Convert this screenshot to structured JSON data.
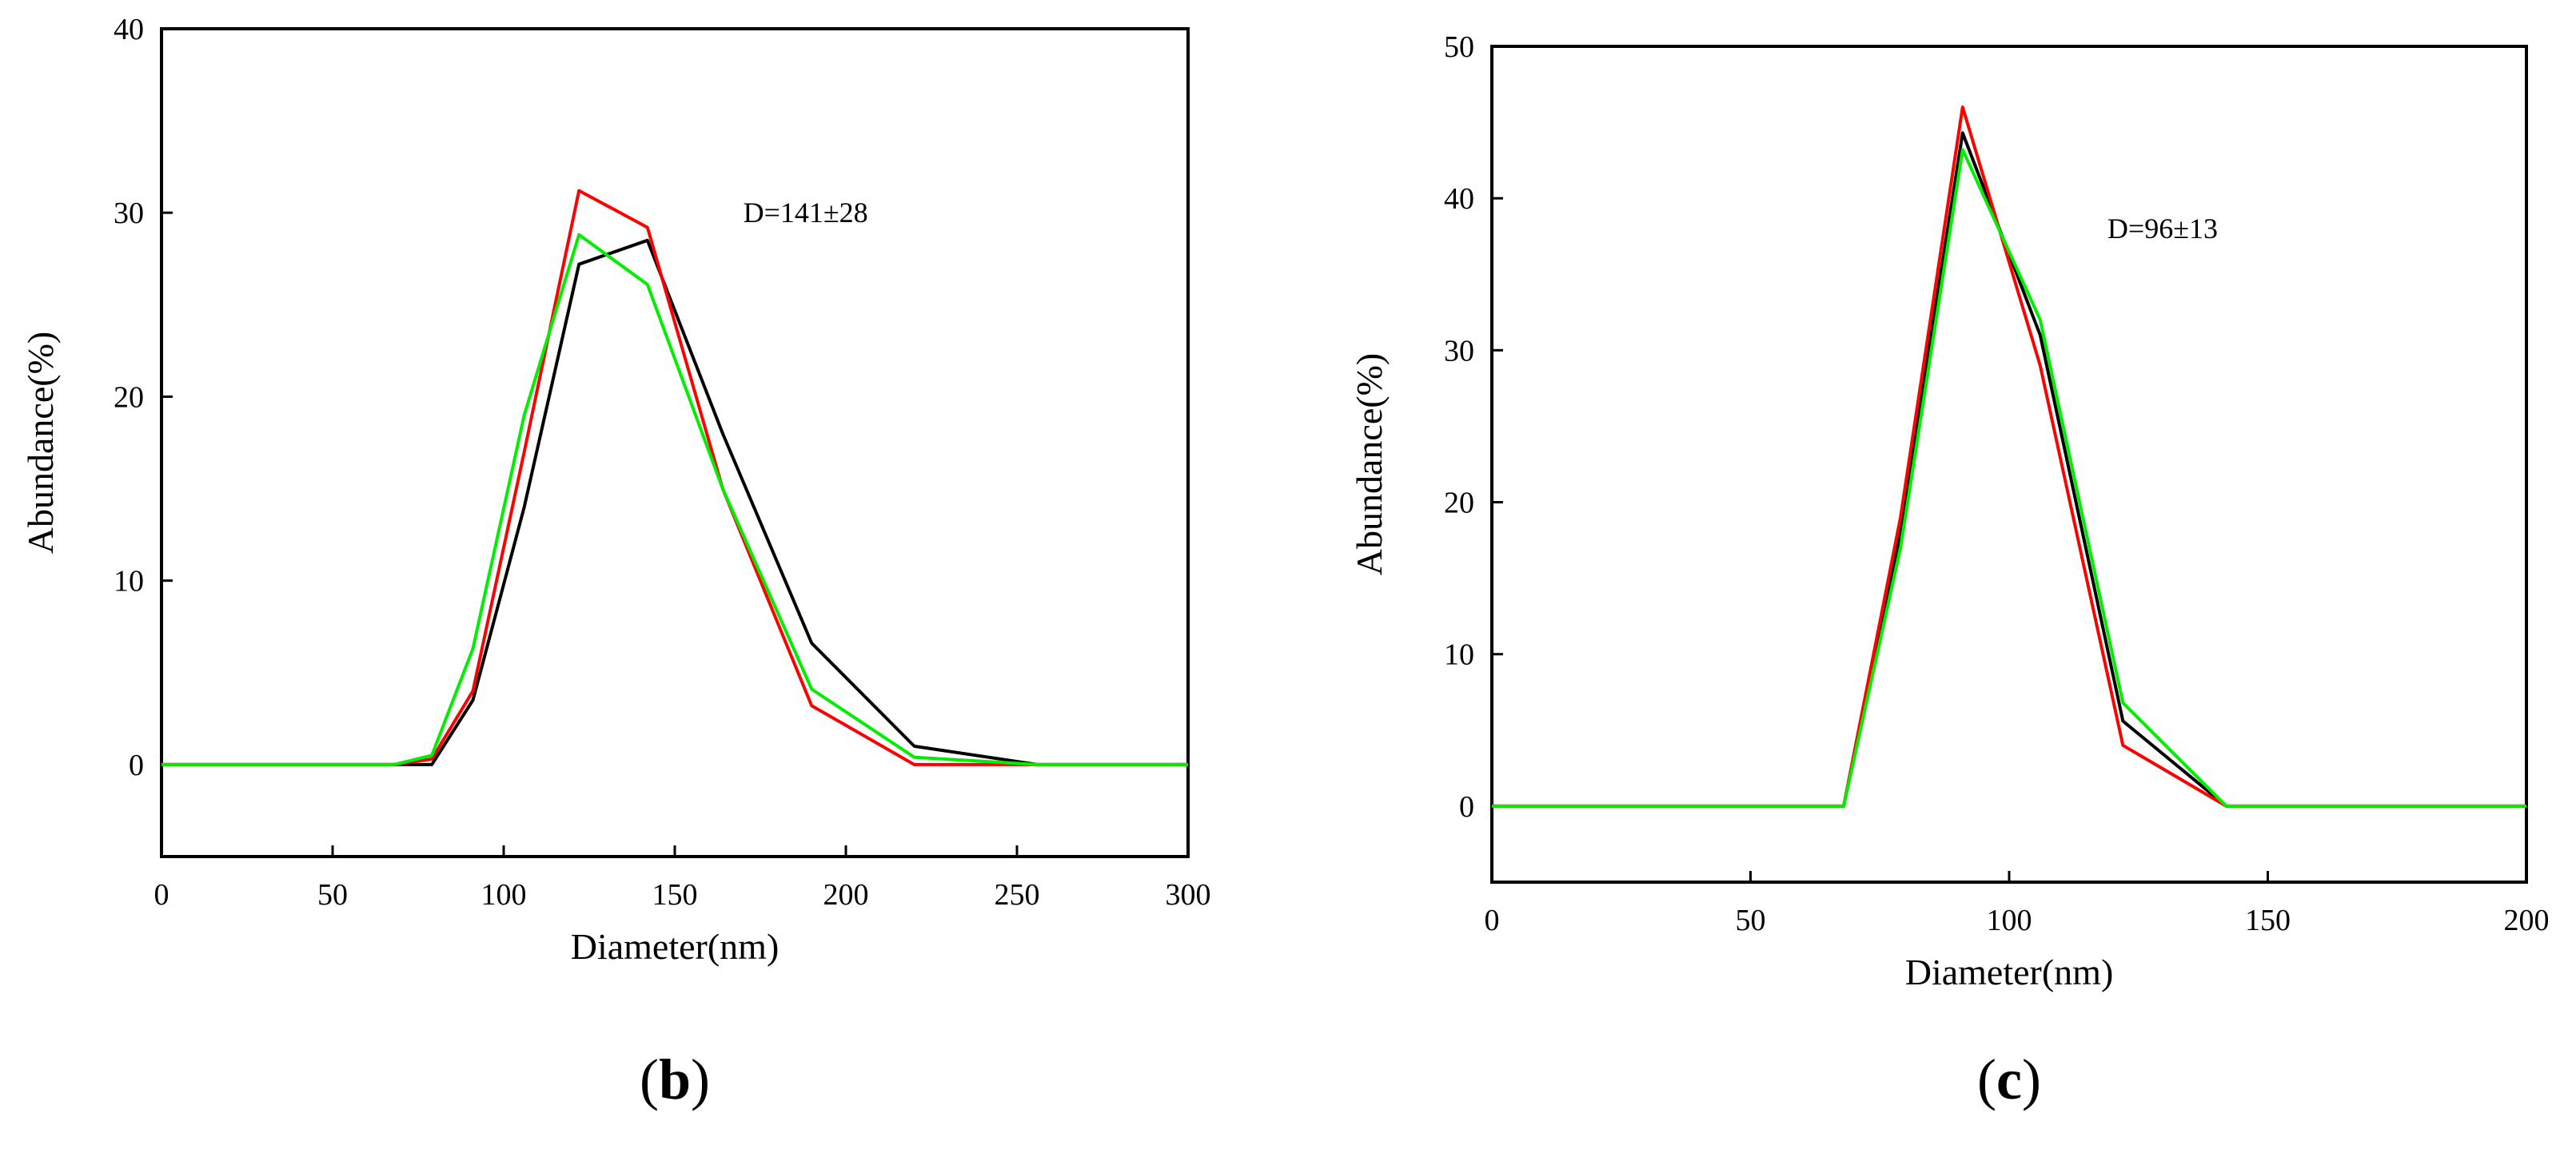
{
  "chart_data": [
    {
      "type": "line",
      "panel_label": {
        "open": "(",
        "letter": "b",
        "close": ")"
      },
      "xlabel": "Diameter(nm)",
      "ylabel": "Abundance(%)",
      "xlim": [
        0,
        300
      ],
      "ylim": [
        -5,
        40
      ],
      "xticks": [
        0,
        50,
        100,
        150,
        200,
        250,
        300
      ],
      "yticks": [
        0,
        10,
        20,
        30,
        40
      ],
      "annotation": {
        "text": "D=141±28",
        "x": 170,
        "y": 30
      },
      "series": [
        {
          "name": "black",
          "color": "#000000",
          "x": [
            0,
            68,
            79,
            91,
            106,
            122,
            142,
            164,
            190,
            220,
            256,
            300
          ],
          "y": [
            0,
            0,
            0,
            3.5,
            14,
            27.2,
            28.5,
            18,
            6.6,
            1,
            0,
            0
          ]
        },
        {
          "name": "red",
          "color": "#ff0000",
          "x": [
            0,
            68,
            79,
            91,
            106,
            122,
            142,
            164,
            190,
            220,
            256,
            300
          ],
          "y": [
            0,
            0,
            0.3,
            4,
            17,
            31.2,
            29.2,
            15,
            3.2,
            0,
            0,
            0
          ]
        },
        {
          "name": "green",
          "color": "#00ee00",
          "x": [
            0,
            68,
            79,
            91,
            106,
            122,
            142,
            164,
            190,
            220,
            256,
            300
          ],
          "y": [
            0,
            0,
            0.5,
            6.3,
            19,
            28.8,
            26.1,
            15,
            4.1,
            0.4,
            0,
            0
          ]
        }
      ]
    },
    {
      "type": "line",
      "panel_label": {
        "open": "(",
        "letter": "c",
        "close": ")"
      },
      "xlabel": "Diameter(nm)",
      "ylabel": "Abundance(%)",
      "xlim": [
        0,
        200
      ],
      "ylim": [
        -5,
        50
      ],
      "xticks": [
        0,
        50,
        100,
        150,
        200
      ],
      "yticks": [
        0,
        10,
        20,
        30,
        40,
        50
      ],
      "annotation": {
        "text": "D=96±13",
        "x": 119,
        "y": 38
      },
      "series": [
        {
          "name": "black",
          "color": "#000000",
          "x": [
            0,
            68,
            79,
            91,
            106,
            122,
            142,
            200
          ],
          "y": [
            0,
            0,
            18,
            44.3,
            31,
            5.6,
            0,
            0
          ]
        },
        {
          "name": "red",
          "color": "#ff0000",
          "x": [
            0,
            68,
            79,
            91,
            106,
            122,
            142,
            200
          ],
          "y": [
            0,
            0,
            19,
            46,
            29,
            4,
            0,
            0
          ]
        },
        {
          "name": "green",
          "color": "#00ee00",
          "x": [
            0,
            68,
            79,
            91,
            106,
            122,
            142,
            200
          ],
          "y": [
            0,
            0,
            17,
            43.2,
            32,
            6.8,
            0,
            0
          ]
        }
      ]
    }
  ]
}
